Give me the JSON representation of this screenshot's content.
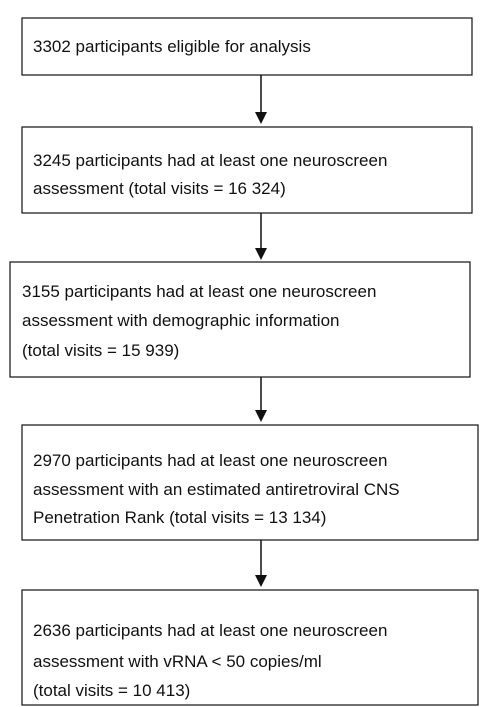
{
  "nodes": [
    {
      "lines": [
        "3302 participants eligible for analysis"
      ]
    },
    {
      "lines": [
        "3245 participants had at least one neuroscreen",
        "assessment (total visits = 16 324)"
      ]
    },
    {
      "lines": [
        "3155 participants had at least one neuroscreen",
        "assessment with demographic information",
        "(total visits = 15 939)"
      ]
    },
    {
      "lines": [
        "2970 participants had at least one neuroscreen",
        "assessment with an estimated antiretroviral CNS",
        "Penetration Rank (total visits = 13 134)"
      ]
    },
    {
      "lines": [
        "2636 participants had at least one neuroscreen",
        "assessment with vRNA < 50 copies/ml",
        "(total visits = 10 413)"
      ]
    }
  ]
}
